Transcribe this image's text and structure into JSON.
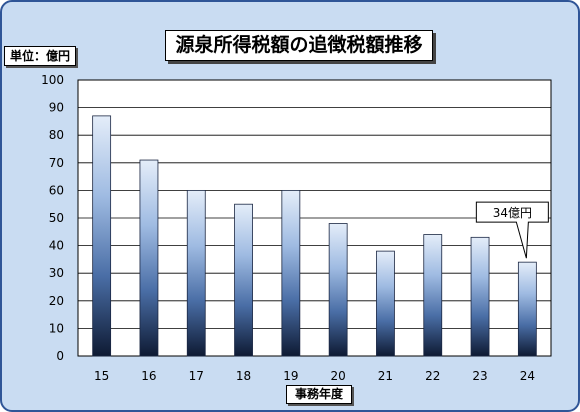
{
  "chart_data": {
    "type": "bar",
    "title": "源泉所得税額の追徴税額推移",
    "unit_label": "単位：億円",
    "xlabel": "事務年度",
    "categories": [
      "15",
      "16",
      "17",
      "18",
      "19",
      "20",
      "21",
      "22",
      "23",
      "24"
    ],
    "values": [
      87,
      71,
      60,
      55,
      60,
      48,
      38,
      44,
      43,
      34
    ],
    "ylim": [
      0,
      100
    ],
    "yticks": [
      0,
      10,
      20,
      30,
      40,
      50,
      60,
      70,
      80,
      90,
      100
    ],
    "grid": true,
    "legend": "none",
    "annotation": {
      "category": "24",
      "text": "34億円"
    }
  },
  "colors": {
    "background": "#c9dcf2",
    "frame_border": "#2f5597",
    "plot_background": "#ffffff",
    "gridline": "#000000",
    "bar_gradient": [
      "#e4edf9",
      "#9fbbe2",
      "#4a6ea6",
      "#0e1a33"
    ],
    "bar_outline": "#1a2642"
  }
}
